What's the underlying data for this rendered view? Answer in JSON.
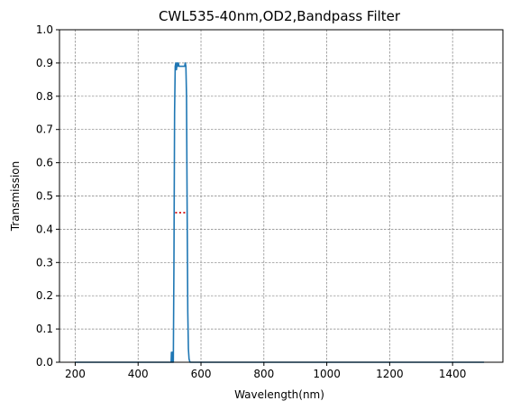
{
  "chart_data": {
    "type": "line",
    "title": "CWL535-40nm,OD2,Bandpass Filter",
    "xlabel": "Wavelength(nm)",
    "ylabel": "Transmission",
    "xlim": [
      150,
      1560
    ],
    "ylim": [
      0,
      1.0
    ],
    "xticks": [
      200,
      400,
      600,
      800,
      1000,
      1200,
      1400
    ],
    "xtick_labels": [
      "200",
      "400",
      "600",
      "800",
      "1000",
      "1200",
      "1400"
    ],
    "yticks": [
      0.0,
      0.1,
      0.2,
      0.3,
      0.4,
      0.5,
      0.6,
      0.7,
      0.8,
      0.9,
      1.0
    ],
    "ytick_labels": [
      "0.0",
      "0.1",
      "0.2",
      "0.3",
      "0.4",
      "0.5",
      "0.6",
      "0.7",
      "0.8",
      "0.9",
      "1.0"
    ],
    "grid": true,
    "series": [
      {
        "color": "#1f77b4",
        "style": "solid",
        "x": [
          200,
          505,
          506,
          507,
          508,
          509,
          510,
          512,
          514,
          516,
          518,
          520,
          522,
          524,
          526,
          528,
          530,
          535,
          540,
          545,
          548,
          550,
          552,
          554,
          556,
          558,
          560,
          562,
          565,
          570,
          600,
          800,
          1000,
          1200,
          1500
        ],
        "y": [
          0.0,
          0.0,
          0.03,
          0.0,
          0.0,
          0.03,
          0.0,
          0.0,
          0.3,
          0.75,
          0.89,
          0.9,
          0.88,
          0.9,
          0.89,
          0.9,
          0.89,
          0.89,
          0.89,
          0.89,
          0.89,
          0.9,
          0.89,
          0.8,
          0.45,
          0.15,
          0.04,
          0.01,
          0.0,
          0.0,
          0.0,
          0.0,
          0.0,
          0.0,
          0.0
        ]
      },
      {
        "color": "#d62728",
        "style": "dotted",
        "x": [
          518,
          552
        ],
        "y": [
          0.45,
          0.45
        ]
      }
    ]
  }
}
